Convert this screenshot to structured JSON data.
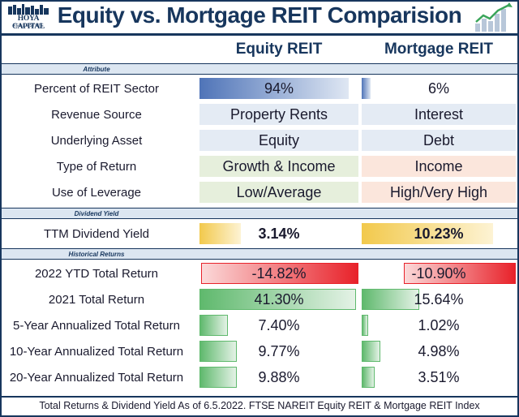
{
  "header": {
    "title": "Equity vs. Mortgage REIT Comparision",
    "logo_text": "HOYA CAPITAL",
    "logo_sub": "REAL ESTATE"
  },
  "columns": {
    "equity": "Equity REIT",
    "mortgage": "Mortgage REIT"
  },
  "sections": {
    "attribute": "Attribute",
    "dividend": "Dividend Yield",
    "historical": "Historical Returns"
  },
  "attributes": [
    {
      "label": "Percent of REIT Sector",
      "equity": "94%",
      "mortgage": "6%",
      "equity_fill": 0.94,
      "mortgage_fill": 0.06
    },
    {
      "label": "Revenue Source",
      "equity": "Property Rents",
      "mortgage": "Interest"
    },
    {
      "label": "Underlying Asset",
      "equity": "Equity",
      "mortgage": "Debt"
    },
    {
      "label": "Type of Return",
      "equity": "Growth & Income",
      "mortgage": "Income"
    },
    {
      "label": "Use of Leverage",
      "equity": "Low/Average",
      "mortgage": "High/Very High"
    }
  ],
  "dividend": {
    "label": "TTM Dividend Yield",
    "equity": "3.14%",
    "mortgage": "10.23%",
    "equity_value": 3.14,
    "mortgage_value": 10.23
  },
  "returns": [
    {
      "label": "2022 YTD Total Return",
      "equity": "-14.82%",
      "mortgage": "-10.90%",
      "equity_value": -14.82,
      "mortgage_value": -10.9
    },
    {
      "label": "2021 Total Return",
      "equity": "41.30%",
      "mortgage": "15.64%",
      "equity_value": 41.3,
      "mortgage_value": 15.64
    },
    {
      "label": "5-Year Annualized Total Return",
      "equity": "7.40%",
      "mortgage": "1.02%",
      "equity_value": 7.4,
      "mortgage_value": 1.02
    },
    {
      "label": "10-Year Annualized Total Return",
      "equity": "9.77%",
      "mortgage": "4.98%",
      "equity_value": 9.77,
      "mortgage_value": 4.98
    },
    {
      "label": "20-Year Annualized Total Return",
      "equity": "9.88%",
      "mortgage": "3.51%",
      "equity_value": 9.88,
      "mortgage_value": 3.51
    }
  ],
  "footer": "Total Returns & Dividend Yield As of 6.5.2022. FTSE NAREIT Equity REIT & Mortgage REIT Index",
  "colors": {
    "navy": "#17365d",
    "green": "#5fb96d",
    "red": "#e8222a",
    "gold": "#f2c94c",
    "blue": "#5b7fc0"
  }
}
